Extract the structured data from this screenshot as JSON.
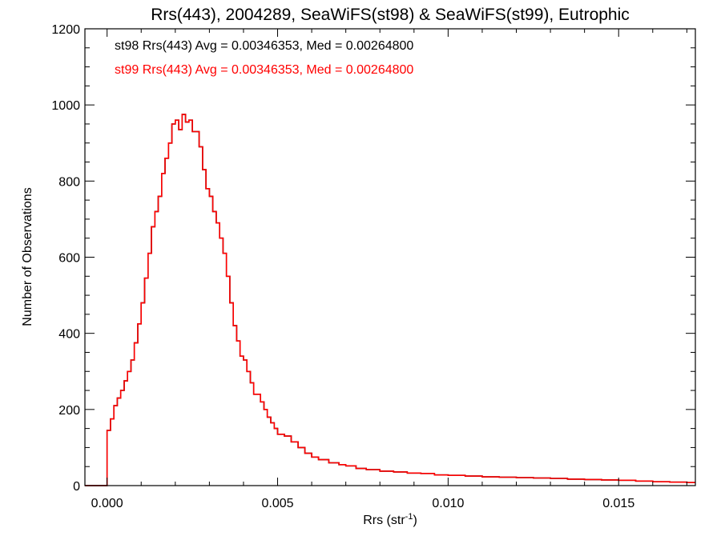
{
  "chart_data": {
    "type": "line",
    "title": "Rrs(443), 2004289, SeaWiFS(st98) & SeaWiFS(st99), Eutrophic",
    "xlabel_main": "Rrs (str",
    "xlabel_sup": "-1",
    "xlabel_tail": ")",
    "ylabel": "Number of Observations",
    "xlim": [
      -0.00065,
      0.01725
    ],
    "ylim": [
      0,
      1200
    ],
    "xticks": [
      0.0,
      0.005,
      0.01,
      0.015
    ],
    "xtick_labels": [
      "0.000",
      "0.005",
      "0.010",
      "0.015"
    ],
    "yticks": [
      0,
      200,
      400,
      600,
      800,
      1000,
      1200
    ],
    "ytick_labels": [
      "0",
      "200",
      "400",
      "600",
      "800",
      "1000",
      "1200"
    ],
    "grid": false,
    "annotations": [
      {
        "text": "st98 Rrs(443) Avg = 0.00346353, Med = 0.00264800",
        "color": "#000000"
      },
      {
        "text": "st99 Rrs(443) Avg = 0.00346353, Med = 0.00264800",
        "color": "#ff0000"
      }
    ],
    "series": [
      {
        "color": "#000000",
        "x": [
          -0.0007,
          -0.0001,
          0.0,
          0.0001,
          0.0002,
          0.0003,
          0.0004,
          0.0005,
          0.0006,
          0.0007,
          0.0008,
          0.0009,
          0.001,
          0.0011,
          0.0012,
          0.0013,
          0.0014,
          0.0015,
          0.0016,
          0.0017,
          0.0018,
          0.0019,
          0.002,
          0.0021,
          0.0022,
          0.0023,
          0.0024,
          0.0025,
          0.0026,
          0.0027,
          0.0028,
          0.0029,
          0.003,
          0.0031,
          0.0032,
          0.0033,
          0.0034,
          0.0035,
          0.0036,
          0.0037,
          0.0038,
          0.0039,
          0.004,
          0.0041,
          0.0042,
          0.0043,
          0.0044,
          0.0045,
          0.0046,
          0.0047,
          0.0048,
          0.0049,
          0.005,
          0.0052,
          0.0054,
          0.0056,
          0.0058,
          0.006,
          0.0062,
          0.0065,
          0.0068,
          0.007,
          0.0073,
          0.0076,
          0.008,
          0.0084,
          0.0088,
          0.0092,
          0.0096,
          0.01,
          0.0105,
          0.011,
          0.0115,
          0.012,
          0.0125,
          0.013,
          0.0135,
          0.014,
          0.0145,
          0.015,
          0.0155,
          0.016,
          0.0165,
          0.017,
          0.01725
        ],
        "y": [
          0,
          0,
          145,
          175,
          210,
          230,
          250,
          275,
          300,
          330,
          375,
          425,
          480,
          545,
          610,
          680,
          720,
          760,
          820,
          860,
          900,
          950,
          960,
          935,
          975,
          955,
          960,
          930,
          930,
          890,
          830,
          780,
          760,
          720,
          690,
          650,
          610,
          550,
          480,
          420,
          380,
          340,
          330,
          300,
          270,
          240,
          240,
          220,
          200,
          180,
          165,
          150,
          135,
          130,
          115,
          100,
          85,
          75,
          68,
          60,
          55,
          52,
          45,
          42,
          38,
          36,
          33,
          32,
          28,
          27,
          25,
          23,
          22,
          21,
          20,
          19,
          17,
          16,
          15,
          14,
          12,
          10,
          9,
          8,
          8
        ]
      },
      {
        "color": "#ff0000",
        "x": [
          -0.0007,
          -0.0001,
          0.0,
          0.0001,
          0.0002,
          0.0003,
          0.0004,
          0.0005,
          0.0006,
          0.0007,
          0.0008,
          0.0009,
          0.001,
          0.0011,
          0.0012,
          0.0013,
          0.0014,
          0.0015,
          0.0016,
          0.0017,
          0.0018,
          0.0019,
          0.002,
          0.0021,
          0.0022,
          0.0023,
          0.0024,
          0.0025,
          0.0026,
          0.0027,
          0.0028,
          0.0029,
          0.003,
          0.0031,
          0.0032,
          0.0033,
          0.0034,
          0.0035,
          0.0036,
          0.0037,
          0.0038,
          0.0039,
          0.004,
          0.0041,
          0.0042,
          0.0043,
          0.0044,
          0.0045,
          0.0046,
          0.0047,
          0.0048,
          0.0049,
          0.005,
          0.0052,
          0.0054,
          0.0056,
          0.0058,
          0.006,
          0.0062,
          0.0065,
          0.0068,
          0.007,
          0.0073,
          0.0076,
          0.008,
          0.0084,
          0.0088,
          0.0092,
          0.0096,
          0.01,
          0.0105,
          0.011,
          0.0115,
          0.012,
          0.0125,
          0.013,
          0.0135,
          0.014,
          0.0145,
          0.015,
          0.0155,
          0.016,
          0.0165,
          0.017,
          0.01725
        ],
        "y": [
          0,
          0,
          145,
          175,
          210,
          230,
          250,
          275,
          300,
          330,
          375,
          425,
          480,
          545,
          610,
          680,
          720,
          760,
          820,
          860,
          900,
          950,
          960,
          935,
          975,
          955,
          960,
          930,
          930,
          890,
          830,
          780,
          760,
          720,
          690,
          650,
          610,
          550,
          480,
          420,
          380,
          340,
          330,
          300,
          270,
          240,
          240,
          220,
          200,
          180,
          165,
          150,
          135,
          130,
          115,
          100,
          85,
          75,
          68,
          60,
          55,
          52,
          45,
          42,
          38,
          36,
          33,
          32,
          28,
          27,
          25,
          23,
          22,
          21,
          20,
          19,
          17,
          16,
          15,
          14,
          12,
          10,
          9,
          8,
          8
        ]
      }
    ]
  }
}
